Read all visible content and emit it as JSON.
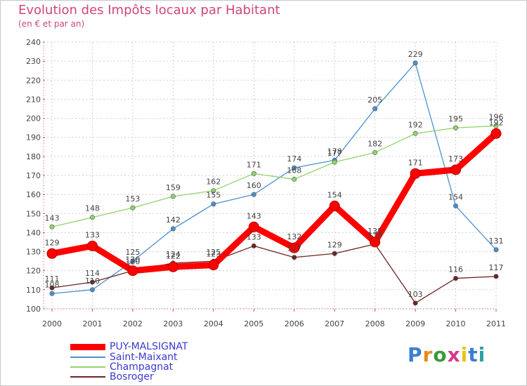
{
  "header": {
    "title": "Evolution des Impôts locaux par Habitant",
    "subtitle": "(en € et par an)"
  },
  "chart_data": {
    "type": "line",
    "title": "Evolution des Impôts locaux par Habitant",
    "subtitle": "(en € et par an)",
    "xlabel": "",
    "ylabel": "",
    "ylim": [
      100,
      240
    ],
    "yticks": [
      100,
      110,
      120,
      130,
      140,
      150,
      160,
      170,
      180,
      190,
      200,
      210,
      220,
      230,
      240
    ],
    "grid": true,
    "categories": [
      "2000",
      "2001",
      "2002",
      "2003",
      "2004",
      "2005",
      "2006",
      "2007",
      "2008",
      "2009",
      "2010",
      "2011"
    ],
    "series": [
      {
        "name": "PUY-MALSIGNAT",
        "color": "#ff0000",
        "values": [
          129,
          133,
          120,
          122,
          123,
          143,
          132,
          154,
          135,
          171,
          173,
          192
        ]
      },
      {
        "name": "Saint-Maixant",
        "color": "#4a90d0",
        "values": [
          108,
          110,
          125,
          142,
          155,
          160,
          174,
          178,
          205,
          229,
          154,
          131
        ]
      },
      {
        "name": "Champagnat",
        "color": "#8fd46b",
        "values": [
          143,
          148,
          153,
          159,
          162,
          171,
          168,
          177,
          182,
          192,
          195,
          196
        ]
      },
      {
        "name": "Bosroger",
        "color": "#6b2424",
        "values": [
          111,
          114,
          120,
          124,
          125,
          133,
          127,
          129,
          134,
          103,
          116,
          117
        ]
      }
    ],
    "legend_position": "bottom-left"
  },
  "logo": {
    "letters": [
      "P",
      "r",
      "o",
      "x",
      "i",
      "t",
      "i"
    ],
    "colors": [
      "#3a7fd0",
      "#e88a1a",
      "#3a9a3a",
      "#d43a8a",
      "#e8c21a",
      "#3a7fd0",
      "#2aa0a0"
    ]
  }
}
